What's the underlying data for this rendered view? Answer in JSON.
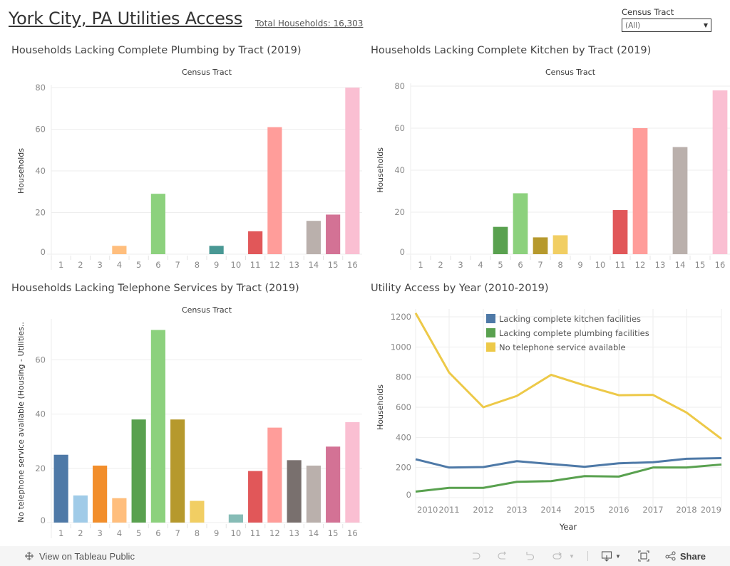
{
  "header": {
    "title": "York City, PA Utilities Access",
    "total_households": "Total Households: 16,303"
  },
  "filter": {
    "label": "Census Tract",
    "selected": "(All)"
  },
  "palette": {
    "tract_colors": [
      "#4e79a7",
      "#a0cbe8",
      "#f28e2b",
      "#ffbe7d",
      "#59a14f",
      "#8cd17d",
      "#b6992d",
      "#f1ce63",
      "#499894",
      "#86bcb6",
      "#e15759",
      "#ff9d9a",
      "#79706e",
      "#bab0ac",
      "#d37295",
      "#fabfd2"
    ],
    "kitchen": "#4e79a7",
    "plumbing": "#59a14f",
    "telephone": "#edc948",
    "grid": "#eeeeee",
    "axis_text": "#8a8a8a"
  },
  "footer": {
    "view_label": "View on Tableau Public",
    "share_label": "Share"
  },
  "chart_data": [
    {
      "id": "plumbing",
      "type": "bar",
      "title": "Households Lacking Complete Plumbing by Tract (2019)",
      "xlabel": "Census Tract",
      "ylabel": "Households",
      "categories": [
        "1",
        "2",
        "3",
        "4",
        "5",
        "6",
        "7",
        "8",
        "9",
        "10",
        "11",
        "12",
        "13",
        "14",
        "15",
        "16"
      ],
      "values": [
        0,
        0,
        0,
        4,
        0,
        29,
        0,
        0,
        4,
        0,
        11,
        61,
        0,
        16,
        19,
        80
      ],
      "bar_color_index": [
        0,
        1,
        2,
        3,
        4,
        5,
        6,
        7,
        8,
        9,
        10,
        11,
        12,
        13,
        14,
        15
      ],
      "yticks": [
        0,
        20,
        40,
        60,
        80
      ],
      "ylim": [
        0,
        80
      ],
      "grid": true
    },
    {
      "id": "kitchen",
      "type": "bar",
      "title": "Households Lacking Complete Kitchen by Tract (2019)",
      "xlabel": "Census Tract",
      "ylabel": "Households",
      "categories": [
        "1",
        "2",
        "3",
        "4",
        "5",
        "6",
        "7",
        "8",
        "9",
        "10",
        "11",
        "12",
        "13",
        "14",
        "15",
        "16"
      ],
      "values": [
        0,
        0,
        0,
        0,
        13,
        29,
        8,
        9,
        0,
        0,
        21,
        60,
        0,
        51,
        0,
        78
      ],
      "yticks": [
        0,
        20,
        40,
        60,
        80
      ],
      "ylim": [
        0,
        80
      ],
      "grid": true
    },
    {
      "id": "telephone",
      "type": "bar",
      "title": "Households Lacking Telephone Services by Tract (2019)",
      "xlabel": "Census Tract",
      "ylabel": "No telephone service available (Housing - Utilities..",
      "categories": [
        "1",
        "2",
        "3",
        "4",
        "5",
        "6",
        "7",
        "8",
        "9",
        "10",
        "11",
        "12",
        "13",
        "14",
        "15",
        "16"
      ],
      "values": [
        25,
        10,
        21,
        9,
        38,
        71,
        38,
        8,
        0,
        3,
        19,
        35,
        23,
        21,
        28,
        37
      ],
      "yticks": [
        0,
        20,
        40,
        60
      ],
      "ylim": [
        0,
        74
      ],
      "grid": true
    },
    {
      "id": "by-year",
      "type": "line",
      "title": "Utility Access by Year (2010-2019)",
      "xlabel": "Year",
      "ylabel": "Households",
      "x": [
        "2010",
        "2011",
        "2012",
        "2013",
        "2014",
        "2015",
        "2016",
        "2017",
        "2018",
        "2019"
      ],
      "series": [
        {
          "name": "Lacking complete kitchen facilities",
          "color_key": "kitchen",
          "values": [
            255,
            200,
            203,
            242,
            223,
            205,
            228,
            235,
            258,
            262
          ]
        },
        {
          "name": "Lacking complete plumbing facilities",
          "color_key": "plumbing",
          "values": [
            40,
            65,
            65,
            105,
            110,
            143,
            140,
            200,
            200,
            220
          ]
        },
        {
          "name": "No telephone service available",
          "color_key": "telephone",
          "values": [
            1225,
            830,
            600,
            675,
            815,
            745,
            680,
            682,
            565,
            390
          ]
        }
      ],
      "yticks": [
        0,
        200,
        400,
        600,
        800,
        1000,
        1200
      ],
      "ylim": [
        -50,
        1250
      ],
      "legend": "top-center",
      "grid": true
    }
  ]
}
